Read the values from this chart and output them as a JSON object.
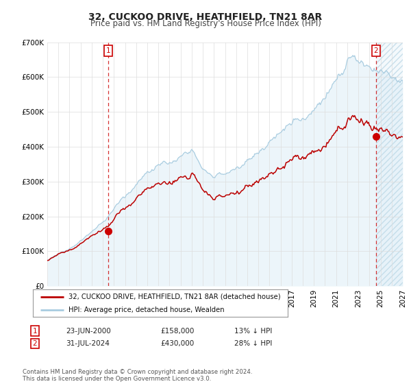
{
  "title": "32, CUCKOO DRIVE, HEATHFIELD, TN21 8AR",
  "subtitle": "Price paid vs. HM Land Registry's House Price Index (HPI)",
  "ylim": [
    0,
    700000
  ],
  "yticks": [
    0,
    100000,
    200000,
    300000,
    400000,
    500000,
    600000,
    700000
  ],
  "ytick_labels": [
    "£0",
    "£100K",
    "£200K",
    "£300K",
    "£400K",
    "£500K",
    "£600K",
    "£700K"
  ],
  "xlim_start": 1995,
  "xlim_end": 2027,
  "hpi_color": "#a8cce0",
  "hpi_fill_color": "#d0e8f4",
  "price_color": "#bb0000",
  "marker_color": "#cc0000",
  "sale1_x": 2000.47,
  "sale1_y": 158000,
  "sale2_x": 2024.58,
  "sale2_y": 430000,
  "legend_line1": "32, CUCKOO DRIVE, HEATHFIELD, TN21 8AR (detached house)",
  "legend_line2": "HPI: Average price, detached house, Wealden",
  "table_row1": [
    "1",
    "23-JUN-2000",
    "£158,000",
    "13% ↓ HPI"
  ],
  "table_row2": [
    "2",
    "31-JUL-2024",
    "£430,000",
    "28% ↓ HPI"
  ],
  "footnote": "Contains HM Land Registry data © Crown copyright and database right 2024.\nThis data is licensed under the Open Government Licence v3.0.",
  "background_color": "#ffffff",
  "grid_color": "#dddddd",
  "title_fontsize": 10,
  "subtitle_fontsize": 8.5,
  "tick_fontsize": 7.5
}
